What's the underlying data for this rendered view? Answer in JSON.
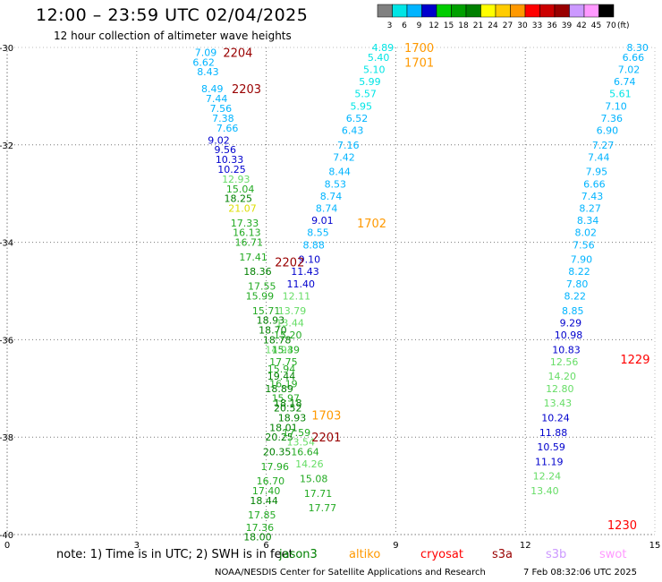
{
  "header": {
    "title": "12:00 – 23:59 UTC 02/04/2025",
    "subtitle": "12 hour collection of altimeter wave heights"
  },
  "colorbar": {
    "labels": [
      "3",
      "6",
      "9",
      "12",
      "15",
      "18",
      "21",
      "24",
      "27",
      "30",
      "33",
      "36",
      "39",
      "42",
      "45",
      "70"
    ],
    "unit": "(ft)",
    "colors": [
      "#808080",
      "#00e5e5",
      "#00b4ff",
      "#0000cd",
      "#00cd00",
      "#00a000",
      "#008000",
      "#ffff00",
      "#ffcc00",
      "#ff9900",
      "#ff0000",
      "#cc0000",
      "#990000",
      "#cc99ff",
      "#ff99ff",
      "#000000"
    ]
  },
  "note": "note:  1) Time is in UTC;  2) SWH is in feet",
  "satellites": [
    {
      "name": "jason3",
      "color": "#008000"
    },
    {
      "name": "altiko",
      "color": "#ff9900"
    },
    {
      "name": "cryosat",
      "color": "#ff0000"
    },
    {
      "name": "s3a",
      "color": "#990000"
    },
    {
      "name": "s3b",
      "color": "#cc99ff"
    },
    {
      "name": "swot",
      "color": "#ff99ff"
    }
  ],
  "footer": {
    "center": "NOAA/NESDIS Center for Satellite Applications and Research",
    "timestamp": "7 Feb 08:32:06 UTC 2025"
  },
  "chart_data": {
    "type": "scatter",
    "xlim": [
      0,
      15
    ],
    "ylim": [
      -40,
      -30
    ],
    "x_ticks": [
      "0",
      "3",
      "6",
      "9",
      "12",
      "15"
    ],
    "y_ticks": [
      "-30",
      "-32",
      "-34",
      "-36",
      "-38",
      "-40"
    ],
    "grid": true,
    "color_scale": [
      {
        "max": 3,
        "color": "#808080"
      },
      {
        "max": 6,
        "color": "#00e5e5"
      },
      {
        "max": 9,
        "color": "#00b4ff"
      },
      {
        "max": 12,
        "color": "#0000cd"
      },
      {
        "max": 15,
        "color": "#66dd66"
      },
      {
        "max": 18,
        "color": "#22aa22"
      },
      {
        "max": 21,
        "color": "#008000"
      },
      {
        "max": 24,
        "color": "#dddd00"
      },
      {
        "max": 99,
        "color": "#ff9900"
      }
    ],
    "tracks": [
      {
        "x": [
          4.6,
          4.55,
          4.65,
          4.75,
          4.85,
          4.95,
          5.0,
          5.1,
          4.9,
          5.05,
          5.15,
          5.2,
          5.3,
          5.4,
          5.35,
          5.45,
          5.5,
          5.55,
          5.6,
          5.7,
          5.8,
          5.9,
          5.85,
          6.0,
          6.1,
          6.15,
          6.25,
          6.3,
          6.35,
          6.4,
          6.45,
          6.5,
          6.4,
          6.3,
          6.25,
          6.2,
          6.1,
          6.0,
          5.95,
          5.9,
          5.85,
          5.8
        ],
        "y": [
          -30.1,
          -30.3,
          -30.5,
          -30.85,
          -31.05,
          -31.25,
          -31.45,
          -31.65,
          -31.9,
          -32.1,
          -32.3,
          -32.5,
          -32.7,
          -32.9,
          -33.1,
          -33.3,
          -33.6,
          -33.8,
          -34.0,
          -34.3,
          -34.6,
          -34.9,
          -35.1,
          -35.4,
          -35.6,
          -35.8,
          -36.0,
          -36.2,
          -36.6,
          -36.9,
          -37.2,
          -37.4,
          -37.8,
          -38.0,
          -38.3,
          -38.6,
          -38.9,
          -39.1,
          -39.3,
          -39.6,
          -39.85,
          -40.05
        ],
        "values": [
          7.09,
          6.62,
          8.43,
          8.49,
          7.44,
          7.56,
          7.38,
          7.66,
          9.02,
          9.56,
          10.33,
          10.25,
          12.93,
          15.04,
          18.25,
          21.07,
          17.33,
          16.13,
          16.71,
          17.41,
          18.36,
          17.55,
          15.99,
          15.71,
          18.93,
          18.7,
          18.78,
          14.94,
          15.94,
          16.19,
          15.97,
          20.52,
          18.01,
          20.25,
          20.35,
          17.96,
          16.7,
          17.4,
          18.44,
          17.85,
          17.36,
          18.0
        ]
      },
      {
        "x": [
          8.7,
          8.6,
          8.5,
          8.4,
          8.3,
          8.2,
          8.1,
          8.0,
          7.9,
          7.8,
          7.7,
          7.6,
          7.5,
          7.4,
          7.3,
          7.2,
          7.1,
          7.0,
          6.9,
          6.8,
          6.7,
          6.6,
          6.55,
          6.5,
          6.45,
          6.4,
          6.35,
          6.3,
          6.5,
          6.6,
          6.7,
          6.8,
          6.9,
          7.0,
          7.1,
          7.2,
          7.3
        ],
        "y": [
          -30.0,
          -30.2,
          -30.45,
          -30.7,
          -30.95,
          -31.2,
          -31.45,
          -31.7,
          -32.0,
          -32.25,
          -32.55,
          -32.8,
          -33.05,
          -33.3,
          -33.55,
          -33.8,
          -34.05,
          -34.35,
          -34.6,
          -34.85,
          -35.1,
          -35.4,
          -35.65,
          -35.9,
          -36.2,
          -36.45,
          -36.75,
          -37.0,
          -37.3,
          -37.6,
          -37.9,
          -38.1,
          -38.3,
          -38.55,
          -38.85,
          -39.15,
          -39.45
        ],
        "values": [
          4.89,
          5.4,
          5.1,
          5.99,
          5.57,
          5.95,
          6.52,
          6.43,
          7.16,
          7.42,
          8.44,
          8.53,
          8.74,
          8.74,
          9.01,
          8.55,
          8.88,
          9.1,
          11.43,
          11.4,
          12.11,
          13.79,
          13.44,
          15.2,
          15.39,
          17.75,
          19.44,
          18.89,
          18.18,
          18.93,
          17.59,
          13.54,
          16.64,
          14.26,
          15.08,
          17.71,
          17.77
        ]
      },
      {
        "x": [
          14.6,
          14.5,
          14.4,
          14.3,
          14.2,
          14.1,
          14.0,
          13.9,
          13.8,
          13.7,
          13.65,
          13.6,
          13.55,
          13.5,
          13.45,
          13.4,
          13.35,
          13.3,
          13.25,
          13.2,
          13.15,
          13.1,
          13.05,
          13.0,
          12.95,
          12.9,
          12.85,
          12.8,
          12.75,
          12.7,
          12.65,
          12.6,
          12.55,
          12.5,
          12.45
        ],
        "y": [
          -30.0,
          -30.2,
          -30.45,
          -30.7,
          -30.95,
          -31.2,
          -31.45,
          -31.7,
          -32.0,
          -32.25,
          -32.55,
          -32.8,
          -33.05,
          -33.3,
          -33.55,
          -33.8,
          -34.05,
          -34.35,
          -34.6,
          -34.85,
          -35.1,
          -35.4,
          -35.65,
          -35.9,
          -36.2,
          -36.45,
          -36.75,
          -37.0,
          -37.3,
          -37.6,
          -37.9,
          -38.2,
          -38.5,
          -38.8,
          -39.1
        ],
        "values": [
          8.3,
          6.66,
          7.02,
          6.74,
          5.61,
          7.1,
          7.36,
          6.9,
          7.27,
          7.44,
          7.95,
          6.66,
          7.43,
          8.27,
          8.34,
          8.02,
          7.56,
          7.9,
          8.22,
          7.8,
          8.22,
          8.85,
          9.29,
          10.98,
          10.83,
          12.56,
          14.2,
          12.8,
          13.43,
          10.24,
          11.88,
          10.59,
          11.19,
          12.24,
          13.4
        ]
      }
    ],
    "satellite_labels": [
      {
        "text": "2204",
        "x": 5.0,
        "y": -30.1,
        "satellite": "s3a"
      },
      {
        "text": "2203",
        "x": 5.2,
        "y": -30.85,
        "satellite": "s3a"
      },
      {
        "text": "2202",
        "x": 6.2,
        "y": -34.4,
        "satellite": "s3a"
      },
      {
        "text": "2201",
        "x": 7.05,
        "y": -38.0,
        "satellite": "s3a"
      },
      {
        "text": "1700",
        "x": 9.2,
        "y": -30.0,
        "satellite": "altiko"
      },
      {
        "text": "1701",
        "x": 9.2,
        "y": -30.3,
        "satellite": "altiko"
      },
      {
        "text": "1702",
        "x": 8.1,
        "y": -33.6,
        "satellite": "altiko"
      },
      {
        "text": "1703",
        "x": 7.05,
        "y": -37.55,
        "satellite": "altiko"
      },
      {
        "text": "1229",
        "x": 14.2,
        "y": -36.4,
        "satellite": "cryosat"
      },
      {
        "text": "1230",
        "x": 13.9,
        "y": -39.8,
        "satellite": "cryosat"
      }
    ]
  }
}
